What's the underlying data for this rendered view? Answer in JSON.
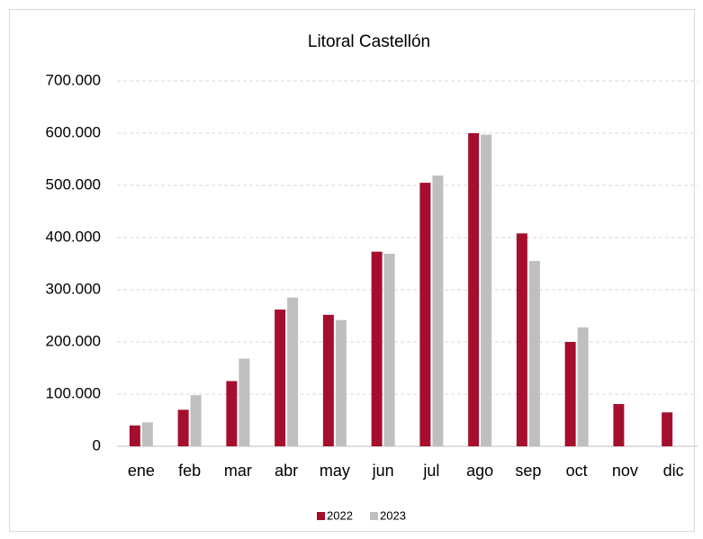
{
  "chart_data": {
    "type": "bar",
    "title": "Litoral Castellón",
    "categories": [
      "ene",
      "feb",
      "mar",
      "abr",
      "may",
      "jun",
      "jul",
      "ago",
      "sep",
      "oct",
      "nov",
      "dic"
    ],
    "series": [
      {
        "name": "2022",
        "color": "#a50f2d",
        "values": [
          40000,
          70000,
          125000,
          262000,
          252000,
          373000,
          505000,
          600000,
          408000,
          200000,
          81000,
          65000
        ]
      },
      {
        "name": "2023",
        "color": "#bfbfbf",
        "values": [
          46000,
          98000,
          168000,
          285000,
          242000,
          369000,
          519000,
          597000,
          355000,
          228000,
          null,
          null
        ]
      }
    ],
    "ylim": [
      0,
      700000
    ],
    "yticks": [
      0,
      {
        "value": 100000,
        "label": "100.000"
      },
      {
        "value": 200000,
        "label": "200.000"
      },
      {
        "value": 300000,
        "label": "300.000"
      },
      {
        "value": 400000,
        "label": "400.000"
      },
      {
        "value": 500000,
        "label": "500.000"
      },
      {
        "value": 600000,
        "label": "600.000"
      },
      {
        "value": 700000,
        "label": "700.000"
      }
    ],
    "grid": true,
    "legend": "bottom"
  }
}
